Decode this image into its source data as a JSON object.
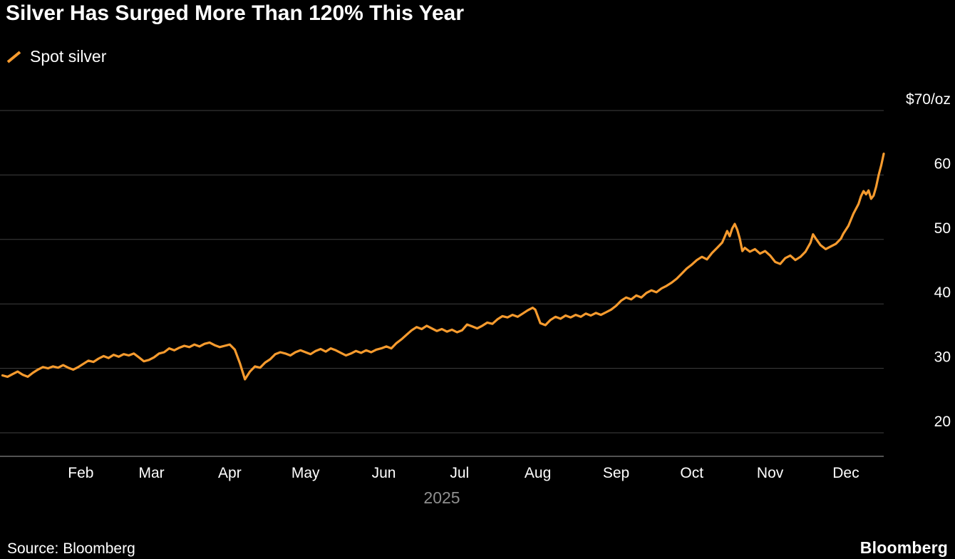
{
  "footer": {
    "source": "Source: Bloomberg",
    "brand": "Bloomberg"
  },
  "chart_data": {
    "type": "line",
    "title": "Silver Has Surged More Than 120% This Year",
    "background": "#000000",
    "text_color": "#FFFFFF",
    "muted_text_color": "#8F8F8F",
    "grid": {
      "color": "#3F3F3F",
      "axis_color": "#6E6E6E"
    },
    "legend_position": "top-left",
    "y_axis": {
      "side": "right",
      "ticks": [
        70,
        60,
        50,
        40,
        30,
        20
      ],
      "tick_labels": [
        "$70/oz",
        "60",
        "50",
        "40",
        "30",
        "20"
      ],
      "range": [
        16.5,
        72.5
      ],
      "unit": "$/oz"
    },
    "x_axis": {
      "year_label": "2025",
      "domain_days": [
        0,
        350
      ],
      "month_ticks": [
        {
          "label": "Feb",
          "day": 32
        },
        {
          "label": "Mar",
          "day": 60
        },
        {
          "label": "Apr",
          "day": 91
        },
        {
          "label": "May",
          "day": 121
        },
        {
          "label": "Jun",
          "day": 152
        },
        {
          "label": "Jul",
          "day": 182
        },
        {
          "label": "Aug",
          "day": 213
        },
        {
          "label": "Sep",
          "day": 244
        },
        {
          "label": "Oct",
          "day": 274
        },
        {
          "label": "Nov",
          "day": 305
        },
        {
          "label": "Dec",
          "day": 335
        }
      ]
    },
    "series": [
      {
        "name": "Spot silver",
        "color": "#F79B2E",
        "points_day_value": [
          [
            1,
            28.9
          ],
          [
            3,
            28.7
          ],
          [
            5,
            29.1
          ],
          [
            7,
            29.5
          ],
          [
            9,
            29.0
          ],
          [
            11,
            28.7
          ],
          [
            13,
            29.3
          ],
          [
            15,
            29.8
          ],
          [
            17,
            30.2
          ],
          [
            19,
            30.0
          ],
          [
            21,
            30.3
          ],
          [
            23,
            30.1
          ],
          [
            25,
            30.5
          ],
          [
            27,
            30.1
          ],
          [
            29,
            29.8
          ],
          [
            31,
            30.2
          ],
          [
            33,
            30.7
          ],
          [
            35,
            31.2
          ],
          [
            37,
            31.0
          ],
          [
            39,
            31.5
          ],
          [
            41,
            31.9
          ],
          [
            43,
            31.6
          ],
          [
            45,
            32.1
          ],
          [
            47,
            31.8
          ],
          [
            49,
            32.2
          ],
          [
            51,
            32.0
          ],
          [
            53,
            32.3
          ],
          [
            55,
            31.7
          ],
          [
            57,
            31.1
          ],
          [
            59,
            31.3
          ],
          [
            61,
            31.7
          ],
          [
            63,
            32.3
          ],
          [
            65,
            32.5
          ],
          [
            67,
            33.1
          ],
          [
            69,
            32.8
          ],
          [
            71,
            33.2
          ],
          [
            73,
            33.5
          ],
          [
            75,
            33.3
          ],
          [
            77,
            33.7
          ],
          [
            79,
            33.4
          ],
          [
            81,
            33.8
          ],
          [
            83,
            34.0
          ],
          [
            85,
            33.6
          ],
          [
            87,
            33.3
          ],
          [
            89,
            33.5
          ],
          [
            91,
            33.7
          ],
          [
            93,
            32.9
          ],
          [
            95,
            30.8
          ],
          [
            97,
            28.3
          ],
          [
            99,
            29.5
          ],
          [
            101,
            30.3
          ],
          [
            103,
            30.1
          ],
          [
            105,
            30.9
          ],
          [
            107,
            31.4
          ],
          [
            109,
            32.2
          ],
          [
            111,
            32.5
          ],
          [
            113,
            32.3
          ],
          [
            115,
            32.0
          ],
          [
            117,
            32.5
          ],
          [
            119,
            32.8
          ],
          [
            121,
            32.5
          ],
          [
            123,
            32.2
          ],
          [
            125,
            32.7
          ],
          [
            127,
            33.0
          ],
          [
            129,
            32.6
          ],
          [
            131,
            33.1
          ],
          [
            133,
            32.8
          ],
          [
            135,
            32.4
          ],
          [
            137,
            32.0
          ],
          [
            139,
            32.3
          ],
          [
            141,
            32.7
          ],
          [
            143,
            32.4
          ],
          [
            145,
            32.8
          ],
          [
            147,
            32.5
          ],
          [
            149,
            32.9
          ],
          [
            151,
            33.1
          ],
          [
            153,
            33.4
          ],
          [
            155,
            33.1
          ],
          [
            157,
            33.9
          ],
          [
            159,
            34.5
          ],
          [
            161,
            35.2
          ],
          [
            163,
            35.9
          ],
          [
            165,
            36.4
          ],
          [
            167,
            36.1
          ],
          [
            169,
            36.6
          ],
          [
            171,
            36.2
          ],
          [
            173,
            35.8
          ],
          [
            175,
            36.1
          ],
          [
            177,
            35.7
          ],
          [
            179,
            36.0
          ],
          [
            181,
            35.6
          ],
          [
            183,
            35.9
          ],
          [
            185,
            36.8
          ],
          [
            187,
            36.5
          ],
          [
            189,
            36.2
          ],
          [
            191,
            36.6
          ],
          [
            193,
            37.1
          ],
          [
            195,
            36.9
          ],
          [
            197,
            37.6
          ],
          [
            199,
            38.1
          ],
          [
            201,
            37.9
          ],
          [
            203,
            38.3
          ],
          [
            205,
            38.0
          ],
          [
            207,
            38.5
          ],
          [
            209,
            39.0
          ],
          [
            211,
            39.4
          ],
          [
            212,
            39.1
          ],
          [
            214,
            37.0
          ],
          [
            216,
            36.7
          ],
          [
            218,
            37.5
          ],
          [
            220,
            38.0
          ],
          [
            222,
            37.7
          ],
          [
            224,
            38.2
          ],
          [
            226,
            37.9
          ],
          [
            228,
            38.3
          ],
          [
            230,
            38.0
          ],
          [
            232,
            38.5
          ],
          [
            234,
            38.2
          ],
          [
            236,
            38.6
          ],
          [
            238,
            38.3
          ],
          [
            240,
            38.7
          ],
          [
            242,
            39.1
          ],
          [
            244,
            39.7
          ],
          [
            246,
            40.5
          ],
          [
            248,
            41.0
          ],
          [
            250,
            40.7
          ],
          [
            252,
            41.3
          ],
          [
            254,
            41.0
          ],
          [
            256,
            41.7
          ],
          [
            258,
            42.1
          ],
          [
            260,
            41.8
          ],
          [
            262,
            42.4
          ],
          [
            264,
            42.8
          ],
          [
            266,
            43.3
          ],
          [
            268,
            43.9
          ],
          [
            270,
            44.7
          ],
          [
            272,
            45.5
          ],
          [
            274,
            46.1
          ],
          [
            276,
            46.8
          ],
          [
            278,
            47.3
          ],
          [
            280,
            46.9
          ],
          [
            282,
            47.9
          ],
          [
            284,
            48.7
          ],
          [
            286,
            49.5
          ],
          [
            287,
            50.4
          ],
          [
            288,
            51.3
          ],
          [
            289,
            50.5
          ],
          [
            290,
            51.7
          ],
          [
            291,
            52.4
          ],
          [
            292,
            51.5
          ],
          [
            293,
            50.1
          ],
          [
            294,
            48.2
          ],
          [
            295,
            48.7
          ],
          [
            297,
            48.1
          ],
          [
            299,
            48.5
          ],
          [
            301,
            47.8
          ],
          [
            303,
            48.2
          ],
          [
            305,
            47.5
          ],
          [
            307,
            46.5
          ],
          [
            309,
            46.2
          ],
          [
            311,
            47.1
          ],
          [
            313,
            47.5
          ],
          [
            315,
            46.8
          ],
          [
            317,
            47.3
          ],
          [
            319,
            48.1
          ],
          [
            321,
            49.5
          ],
          [
            322,
            50.8
          ],
          [
            323,
            50.2
          ],
          [
            325,
            49.1
          ],
          [
            327,
            48.5
          ],
          [
            329,
            48.9
          ],
          [
            331,
            49.3
          ],
          [
            333,
            50.1
          ],
          [
            334,
            50.9
          ],
          [
            336,
            52.1
          ],
          [
            338,
            54.0
          ],
          [
            340,
            55.5
          ],
          [
            341,
            56.7
          ],
          [
            342,
            57.5
          ],
          [
            343,
            57.0
          ],
          [
            344,
            57.6
          ],
          [
            345,
            56.3
          ],
          [
            346,
            56.8
          ],
          [
            347,
            58.2
          ],
          [
            348,
            60.0
          ],
          [
            349,
            61.5
          ],
          [
            350,
            63.3
          ]
        ]
      }
    ]
  }
}
